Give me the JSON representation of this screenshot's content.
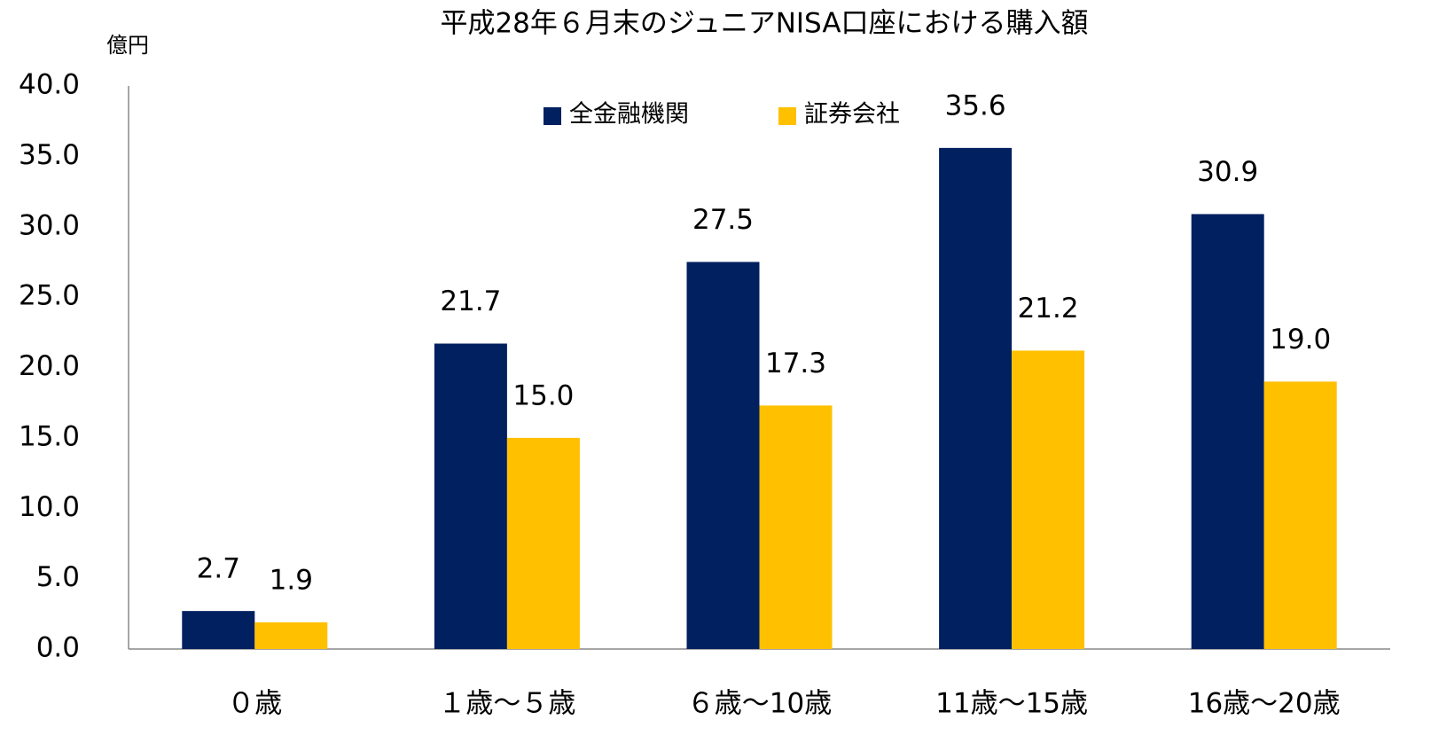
{
  "chart_data": {
    "type": "bar",
    "title": "平成28年６月末のジュニアNISA口座における購入額",
    "y_axis_label": "億円",
    "categories": [
      "０歳",
      "１歳～５歳",
      "６歳～10歳",
      "11歳～15歳",
      "16歳～20歳"
    ],
    "series": [
      {
        "name": "全金融機関",
        "color": "#002060",
        "values": [
          2.7,
          21.7,
          27.5,
          35.6,
          30.9
        ],
        "value_labels": [
          "2.7",
          "21.7",
          "27.5",
          "35.6",
          "30.9"
        ]
      },
      {
        "name": "証券会社",
        "color": "#ffc000",
        "values": [
          1.9,
          15.0,
          17.3,
          21.2,
          19.0
        ],
        "value_labels": [
          "1.9",
          "15.0",
          "17.3",
          "21.2",
          "19.0"
        ]
      }
    ],
    "ylim": [
      0,
      40
    ],
    "yticks": [
      {
        "value": 0,
        "label": "0.0"
      },
      {
        "value": 5,
        "label": "5.0"
      },
      {
        "value": 10,
        "label": "10.0"
      },
      {
        "value": 15,
        "label": "15.0"
      },
      {
        "value": 20,
        "label": "20.0"
      },
      {
        "value": 25,
        "label": "25.0"
      },
      {
        "value": 30,
        "label": "30.0"
      },
      {
        "value": 35,
        "label": "35.0"
      },
      {
        "value": 40,
        "label": "40.0"
      }
    ],
    "grid": false,
    "legend": "top"
  }
}
